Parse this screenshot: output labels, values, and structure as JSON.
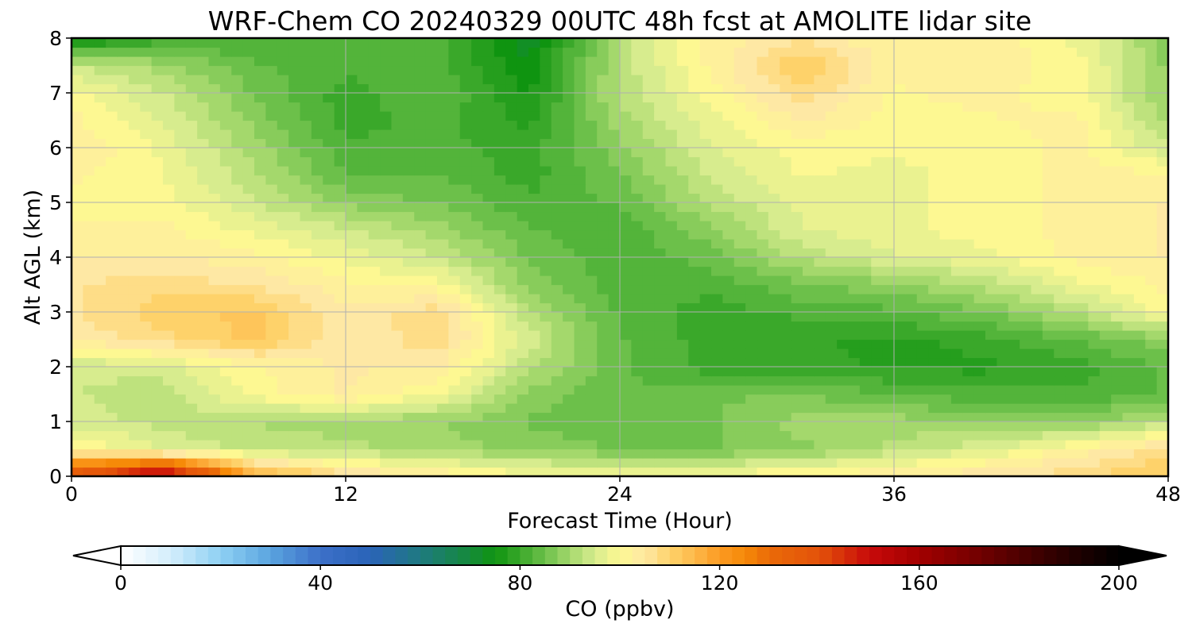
{
  "chart_data": {
    "type": "heatmap",
    "title": "WRF-Chem CO  20240329 00UTC 48h fcst at AMOLITE lidar site",
    "xlabel": "Forecast Time (Hour)",
    "ylabel": "Alt AGL (km)",
    "xlim": [
      0,
      48
    ],
    "ylim": [
      0,
      8
    ],
    "x_ticks": [
      0,
      12,
      24,
      36,
      48
    ],
    "y_ticks": [
      0,
      1,
      2,
      3,
      4,
      5,
      6,
      7,
      8
    ],
    "grid": true,
    "x": [
      0,
      4,
      8,
      12,
      16,
      20,
      24,
      28,
      32,
      36,
      40,
      44,
      48
    ],
    "y": [
      0,
      0.5,
      1,
      1.5,
      2,
      2.5,
      3,
      3.5,
      4,
      4.5,
      5,
      5.5,
      6,
      6.5,
      7,
      7.5,
      8
    ],
    "z": [
      [
        140,
        160,
        118,
        108,
        104,
        100,
        100,
        100,
        102,
        104,
        106,
        108,
        112
      ],
      [
        102,
        96,
        93,
        92,
        90,
        88,
        86,
        86,
        88,
        92,
        96,
        102,
        108
      ],
      [
        95,
        93,
        91,
        90,
        89,
        86,
        84,
        86,
        90,
        90,
        88,
        88,
        92
      ],
      [
        94,
        92,
        100,
        104,
        99,
        88,
        84,
        86,
        86,
        84,
        82,
        82,
        84
      ],
      [
        94,
        95,
        101,
        104,
        104,
        92,
        84,
        80,
        80,
        78,
        78,
        80,
        84
      ],
      [
        104,
        108,
        112,
        104,
        108,
        95,
        84,
        80,
        79,
        78,
        80,
        84,
        88
      ],
      [
        106,
        110,
        112,
        104,
        108,
        92,
        83,
        80,
        82,
        83,
        86,
        92,
        100
      ],
      [
        106,
        108,
        106,
        102,
        100,
        88,
        82,
        82,
        86,
        88,
        92,
        98,
        102
      ],
      [
        104,
        104,
        102,
        98,
        94,
        86,
        82,
        85,
        92,
        96,
        98,
        102,
        104
      ],
      [
        102,
        102,
        98,
        94,
        90,
        84,
        82,
        88,
        96,
        98,
        100,
        102,
        104
      ],
      [
        100,
        100,
        94,
        88,
        86,
        82,
        84,
        92,
        97,
        98,
        100,
        102,
        104
      ],
      [
        102,
        99,
        92,
        84,
        84,
        80,
        86,
        94,
        99,
        98,
        100,
        102,
        102
      ],
      [
        104,
        98,
        90,
        82,
        82,
        80,
        88,
        96,
        100,
        99,
        100,
        102,
        94
      ],
      [
        102,
        96,
        88,
        80,
        82,
        78,
        90,
        98,
        104,
        100,
        101,
        102,
        90
      ],
      [
        100,
        94,
        86,
        80,
        84,
        76,
        92,
        100,
        108,
        101,
        102,
        100,
        88
      ],
      [
        94,
        90,
        84,
        82,
        82,
        74,
        92,
        102,
        112,
        102,
        103,
        100,
        88
      ],
      [
        74,
        80,
        82,
        84,
        82,
        72,
        92,
        102,
        106,
        101,
        103,
        98,
        88
      ]
    ],
    "colorbar": {
      "label": "CO  (ppbv)",
      "min": 0,
      "max": 200,
      "ticks": [
        0,
        40,
        80,
        120,
        160,
        200
      ],
      "extend": "both",
      "colors": [
        [
          0,
          "#ffffff"
        ],
        [
          10,
          "#d4eefc"
        ],
        [
          20,
          "#8ed0f3"
        ],
        [
          30,
          "#5aa4df"
        ],
        [
          40,
          "#3c6fc8"
        ],
        [
          50,
          "#2a63b8"
        ],
        [
          60,
          "#1e7a80"
        ],
        [
          70,
          "#158a3a"
        ],
        [
          75,
          "#0f9410"
        ],
        [
          80,
          "#3aa82a"
        ],
        [
          85,
          "#6cc04a"
        ],
        [
          90,
          "#a4d86c"
        ],
        [
          95,
          "#d7ec8e"
        ],
        [
          100,
          "#fdf892"
        ],
        [
          105,
          "#fee8a4"
        ],
        [
          110,
          "#fed26a"
        ],
        [
          115,
          "#fdb84a"
        ],
        [
          120,
          "#fb9a22"
        ],
        [
          125,
          "#f68a08"
        ],
        [
          130,
          "#ea6a08"
        ],
        [
          140,
          "#e3520a"
        ],
        [
          150,
          "#c80a0a"
        ],
        [
          160,
          "#a20000"
        ],
        [
          170,
          "#7a0000"
        ],
        [
          180,
          "#4e0000"
        ],
        [
          190,
          "#250000"
        ],
        [
          200,
          "#000000"
        ]
      ]
    }
  }
}
